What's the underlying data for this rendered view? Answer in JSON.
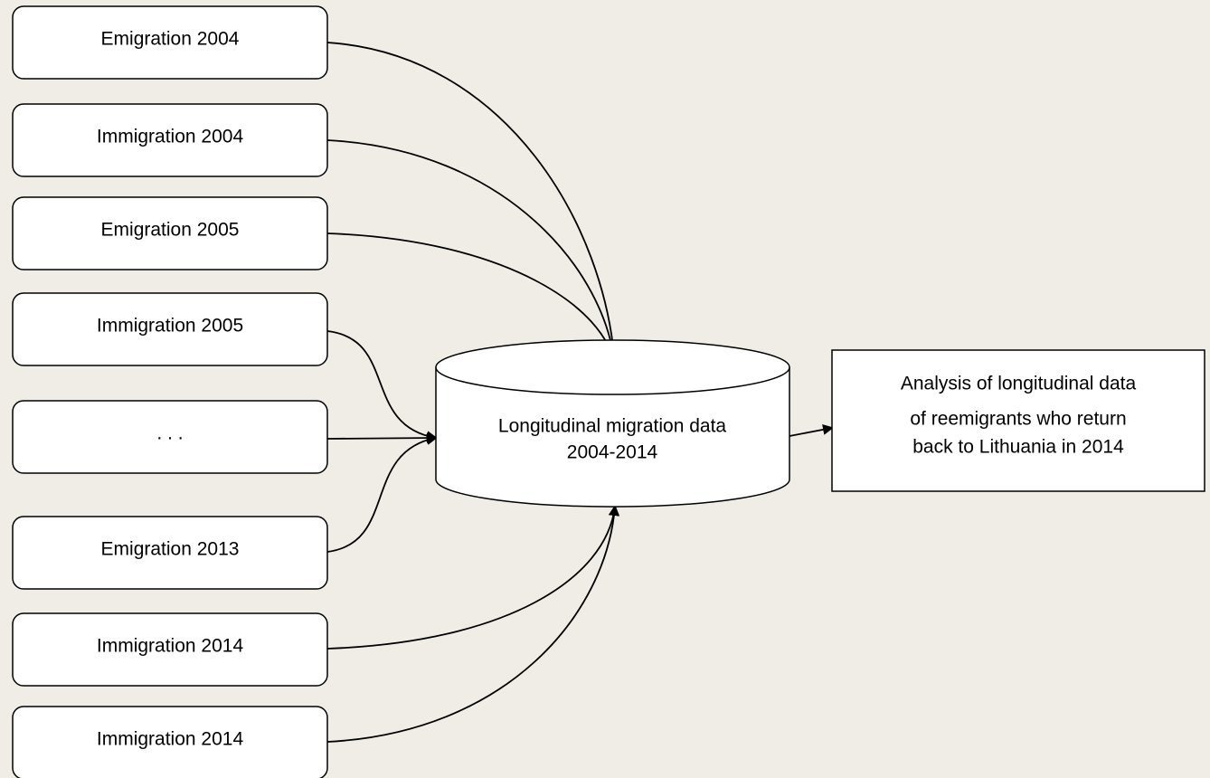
{
  "nodes": [
    {
      "label": "Emigration 2004"
    },
    {
      "label": "Immigration 2004"
    },
    {
      "label": "Emigration 2005"
    },
    {
      "label": "Immigration 2005"
    },
    {
      "label": ". . ."
    },
    {
      "label": "Emigration 2013"
    },
    {
      "label": "Immigration 2014"
    },
    {
      "label": "Immigration 2014"
    }
  ],
  "database": {
    "lines": [
      "Longitudinal migration data",
      "2004-2014"
    ]
  },
  "output": {
    "lines": [
      "Analysis of longitudinal data",
      "of reemigrants who return",
      "back to Lithuania in 2014"
    ]
  }
}
